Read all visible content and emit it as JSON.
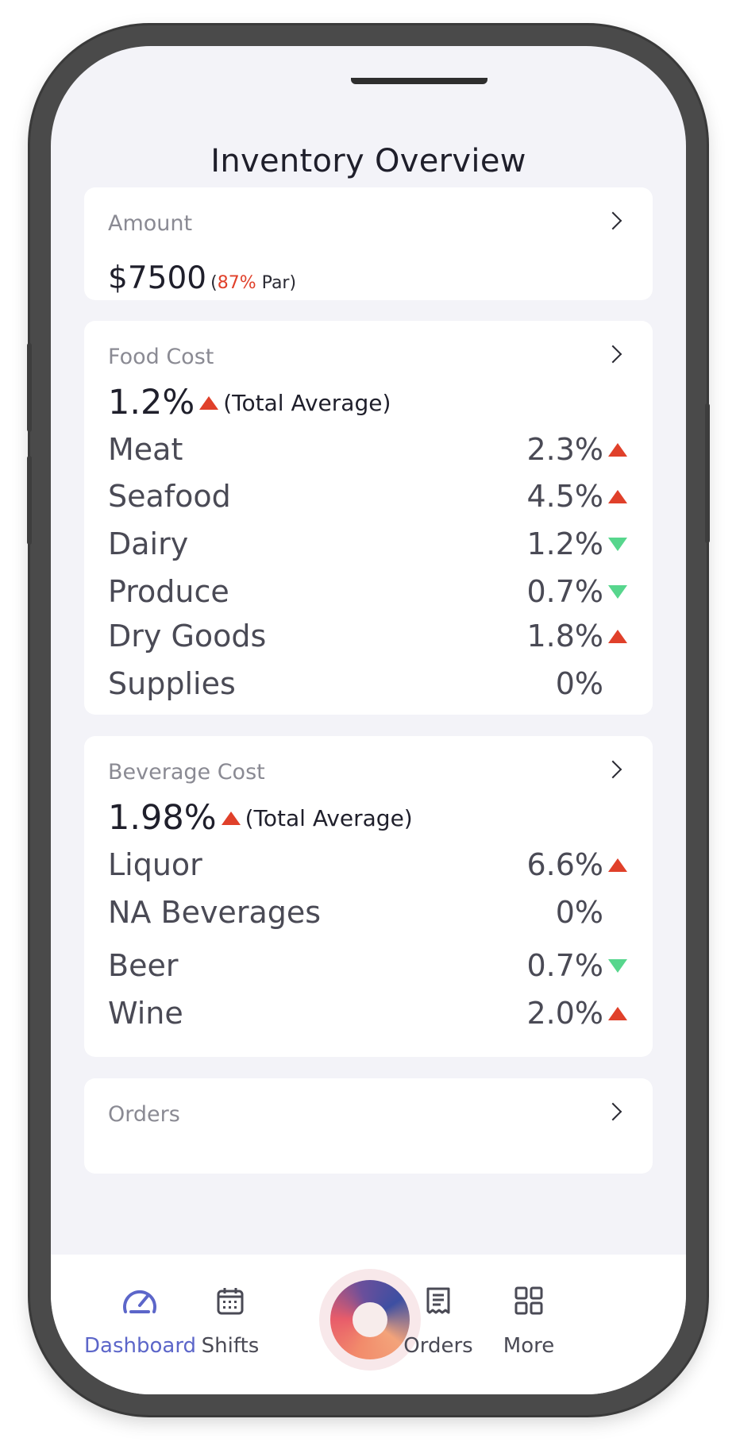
{
  "header": {
    "title": "Inventory Overview"
  },
  "amount_card": {
    "label": "Amount",
    "value": "$7500",
    "par_open": "(",
    "par_percent": "87%",
    "par_text": " Par)"
  },
  "food_cost": {
    "label": "Food Cost",
    "total_value": "1.2%",
    "total_label": "(Total Average)",
    "total_trend": "up",
    "rows": [
      {
        "name": "Meat",
        "value": "2.3%",
        "trend": "up"
      },
      {
        "name": "Seafood",
        "value": "4.5%",
        "trend": "up"
      },
      {
        "name": "Dairy",
        "value": "1.2%",
        "trend": "down"
      },
      {
        "name": "Produce",
        "value": "0.7%",
        "trend": "down"
      },
      {
        "name": "Dry Goods",
        "value": "1.8%",
        "trend": "up"
      },
      {
        "name": "Supplies",
        "value": "0%",
        "trend": "none"
      }
    ]
  },
  "beverage_cost": {
    "label": "Beverage Cost",
    "total_value": "1.98%",
    "total_label": "(Total Average)",
    "total_trend": "up",
    "rows": [
      {
        "name": "Liquor",
        "value": "6.6%",
        "trend": "up"
      },
      {
        "name": "NA Beverages",
        "value": "0%",
        "trend": "none"
      },
      {
        "name": "Beer",
        "value": "0.7%",
        "trend": "down"
      },
      {
        "name": "Wine",
        "value": "2.0%",
        "trend": "up"
      }
    ]
  },
  "orders_card": {
    "label": "Orders"
  },
  "tabbar": {
    "items": [
      {
        "label": "Dashboard",
        "icon": "gauge-icon",
        "active": true
      },
      {
        "label": "Shifts",
        "icon": "calendar-icon",
        "active": false
      },
      {
        "label": "Orders",
        "icon": "receipt-icon",
        "active": false
      },
      {
        "label": "More",
        "icon": "grid-icon",
        "active": false
      }
    ],
    "center_icon": "brand-orb-icon"
  },
  "colors": {
    "trend_up": "#e0402a",
    "trend_down": "#57d68d",
    "accent": "#5c66c9",
    "background": "#f3f3f8"
  }
}
